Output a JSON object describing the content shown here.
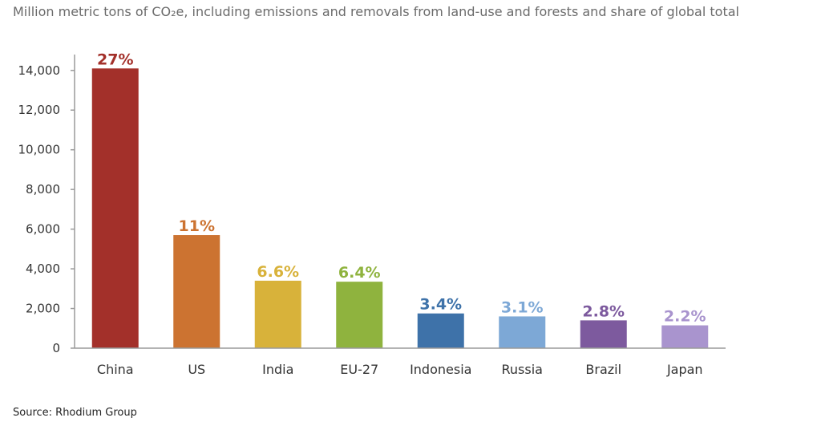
{
  "chart_data": {
    "type": "bar",
    "subtitle": "Million metric tons of CO₂e, including emissions and removals from land-use and forests and share of global total",
    "categories": [
      "China",
      "US",
      "India",
      "EU-27",
      "Indonesia",
      "Russia",
      "Brazil",
      "Japan"
    ],
    "values": [
      14100,
      5700,
      3400,
      3350,
      1750,
      1600,
      1400,
      1150
    ],
    "data_labels": [
      "27%",
      "11%",
      "6.6%",
      "6.4%",
      "3.4%",
      "3.1%",
      "2.8%",
      "2.2%"
    ],
    "colors": [
      "#a3302a",
      "#cc7331",
      "#d8b23a",
      "#8fb33e",
      "#3e72a9",
      "#7da8d6",
      "#7d5a9e",
      "#a994ce"
    ],
    "yticks": [
      0,
      2000,
      4000,
      6000,
      8000,
      10000,
      12000,
      14000
    ],
    "ytick_labels": [
      "0",
      "2,000",
      "4,000",
      "6,000",
      "8,000",
      "10,000",
      "12,000",
      "14,000"
    ],
    "ylim": [
      0,
      14800
    ],
    "xlabel": "",
    "ylabel": "",
    "grid": false,
    "source": "Source: Rhodium Group"
  }
}
